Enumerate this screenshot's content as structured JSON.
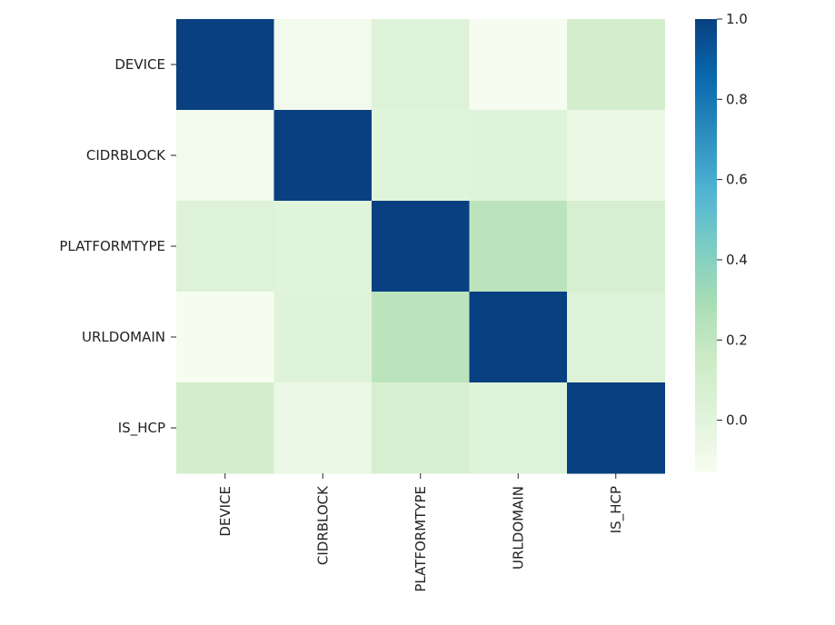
{
  "chart_data": {
    "type": "heatmap",
    "title": "",
    "xlabel": "",
    "ylabel": "",
    "row_labels": [
      "DEVICE",
      "CIDRBLOCK",
      "PLATFORMTYPE",
      "URLDOMAIN",
      "IS_HCP"
    ],
    "col_labels": [
      "DEVICE",
      "CIDRBLOCK",
      "PLATFORMTYPE",
      "URLDOMAIN",
      "IS_HCP"
    ],
    "values": [
      [
        1.0,
        -0.1,
        0.03,
        -0.13,
        0.1
      ],
      [
        -0.1,
        1.0,
        0.01,
        0.02,
        -0.06
      ],
      [
        0.03,
        0.01,
        1.0,
        0.22,
        0.08
      ],
      [
        -0.13,
        0.02,
        0.22,
        1.0,
        0.03
      ],
      [
        0.1,
        -0.06,
        0.08,
        0.03,
        1.0
      ]
    ],
    "colormap": "GnBu",
    "vmin": -0.13,
    "vmax": 1.0,
    "colorbar": {
      "ticks": [
        0.0,
        0.2,
        0.4,
        0.6,
        0.8,
        1.0
      ],
      "tick_labels": [
        "0.0",
        "0.2",
        "0.4",
        "0.6",
        "0.8",
        "1.0"
      ],
      "placement": "right"
    },
    "grid": false
  }
}
